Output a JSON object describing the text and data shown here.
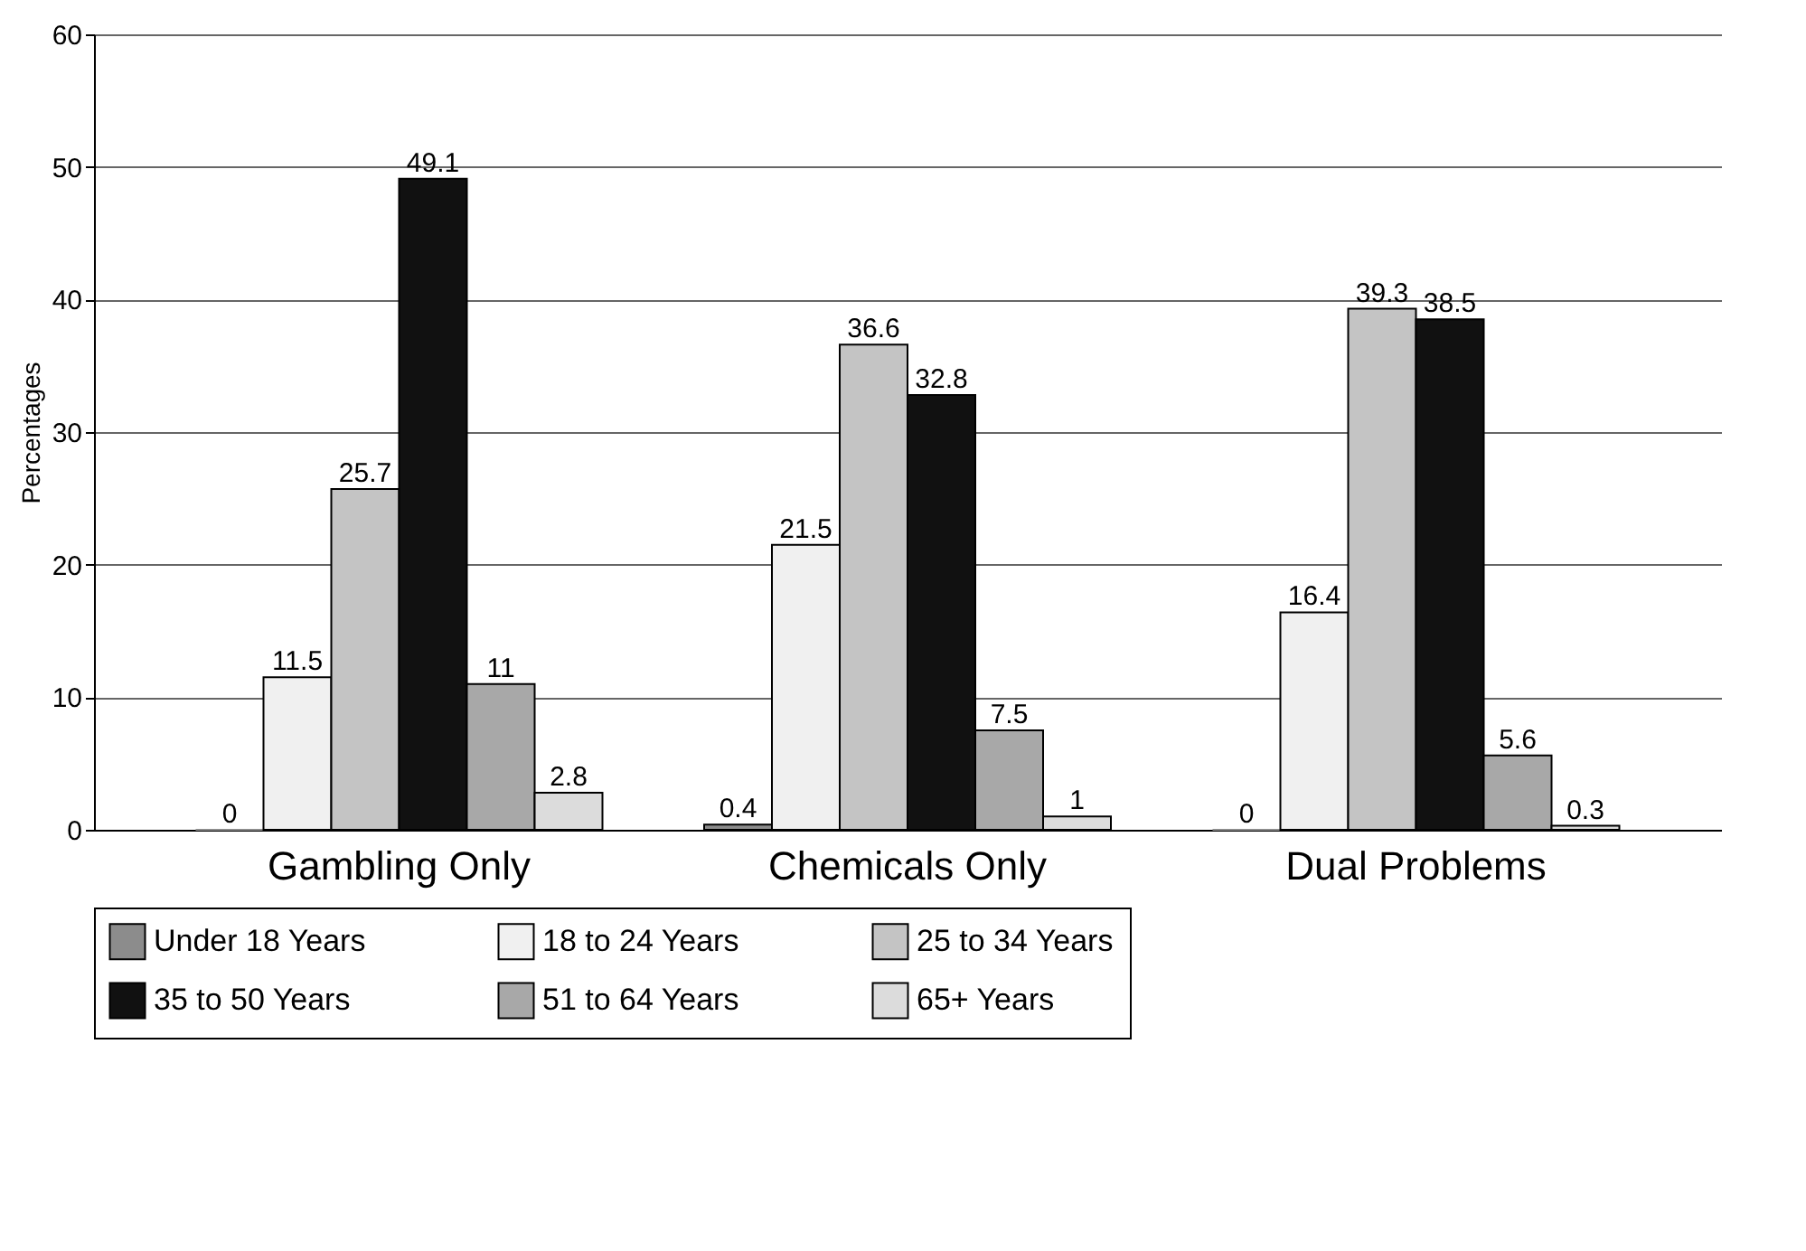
{
  "chart_data": {
    "type": "bar",
    "ylabel": "Percentages",
    "categories": [
      "Gambling Only",
      "Chemicals Only",
      "Dual Problems"
    ],
    "series": [
      {
        "name": "Under 18 Years",
        "color": "#8c8c8c",
        "values": [
          0,
          0.4,
          0
        ]
      },
      {
        "name": "18 to 24 Years",
        "color": "#f0f0f0",
        "values": [
          11.5,
          21.5,
          16.4
        ]
      },
      {
        "name": "25 to 34 Years",
        "color": "#c4c4c4",
        "values": [
          25.7,
          36.6,
          39.3
        ]
      },
      {
        "name": "35 to 50 Years",
        "color": "#111111",
        "values": [
          49.1,
          32.8,
          38.5
        ]
      },
      {
        "name": "51 to 64 Years",
        "color": "#a8a8a8",
        "values": [
          11,
          7.5,
          5.6
        ]
      },
      {
        "name": "65+ Years",
        "color": "#dcdcdc",
        "values": [
          2.8,
          1,
          0.3
        ]
      }
    ],
    "ylim": [
      0,
      60
    ],
    "yticks": [
      0,
      10,
      20,
      30,
      40,
      50,
      60
    ],
    "grid": "y",
    "legend": "bottom",
    "data_labels": true
  }
}
